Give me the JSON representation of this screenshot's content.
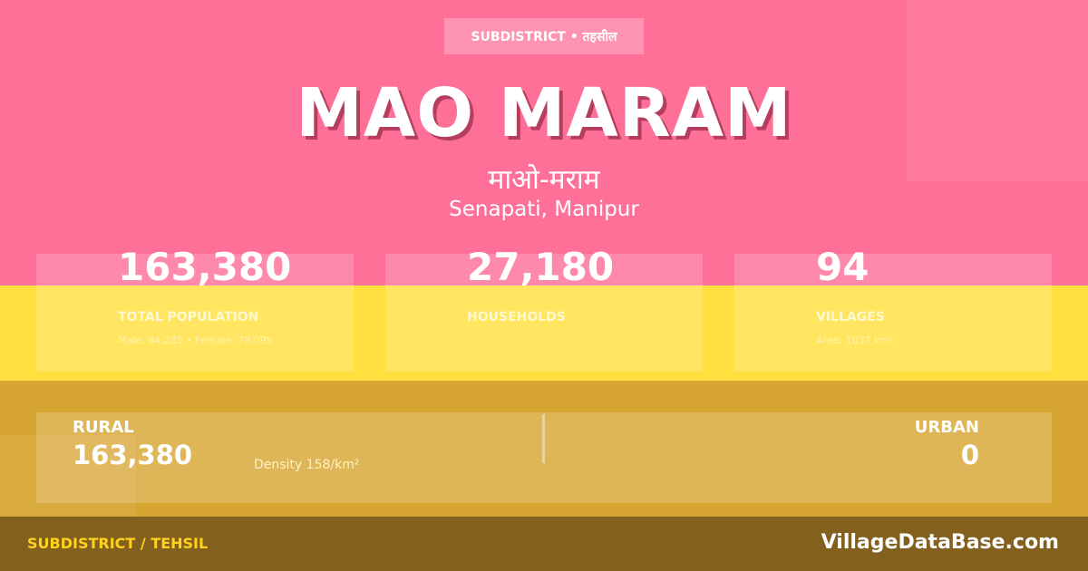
{
  "badge": "SUBDISTRICT • तहसील",
  "title": "MAO MARAM",
  "title_hindi": "माओ-मराम",
  "location": "Senapati, Manipur",
  "stats": [
    {
      "value": "163,380",
      "label": "TOTAL POPULATION",
      "sub": "Male: 84,285 • Female: 79,095"
    },
    {
      "value": "27,180",
      "label": "HOUSEHOLDS",
      "sub": ""
    },
    {
      "value": "94",
      "label": "VILLAGES",
      "sub": "Area: 1037 km²"
    }
  ],
  "rural": {
    "label": "RURAL",
    "value": "163,380"
  },
  "density": "Density 158/km²",
  "urban": {
    "label": "URBAN",
    "value": "0"
  },
  "footer": {
    "left": "SUBDISTRICT / TEHSIL",
    "brand": "VillageDataBase.com"
  },
  "colors": {
    "pink": "#ff7098",
    "yellow": "#ffe03e",
    "gold": "#d7a532",
    "footer": "#84601f"
  }
}
